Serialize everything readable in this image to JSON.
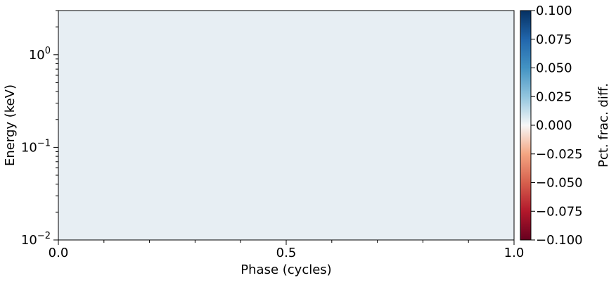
{
  "chart_data": {
    "type": "heatmap",
    "title": "",
    "xlabel": "Phase (cycles)",
    "ylabel": "Energy (keV)",
    "xlim": [
      0,
      1
    ],
    "ylim": [
      0.01,
      3
    ],
    "y_scale": "log",
    "x_ticks": [
      {
        "value": 0.0,
        "label": "0.0"
      },
      {
        "value": 0.5,
        "label": "0.5"
      },
      {
        "value": 1.0,
        "label": "1.0"
      }
    ],
    "y_ticks": [
      {
        "value": 0.01,
        "base": "10",
        "exp": "−2"
      },
      {
        "value": 0.1,
        "base": "10",
        "exp": "−1"
      },
      {
        "value": 1,
        "base": "10",
        "exp": "0"
      }
    ],
    "values": [
      [
        0.02
      ]
    ],
    "fill_color": "#e7eef3",
    "colorbar": {
      "label": "Pct. frac. diff.",
      "range": [
        -0.1,
        0.1
      ],
      "colormap": "RdBu",
      "ticks": [
        "0.100",
        "0.075",
        "0.050",
        "0.025",
        "0.000",
        "−0.025",
        "−0.050",
        "−0.075",
        "−0.100"
      ]
    },
    "grid": false
  }
}
